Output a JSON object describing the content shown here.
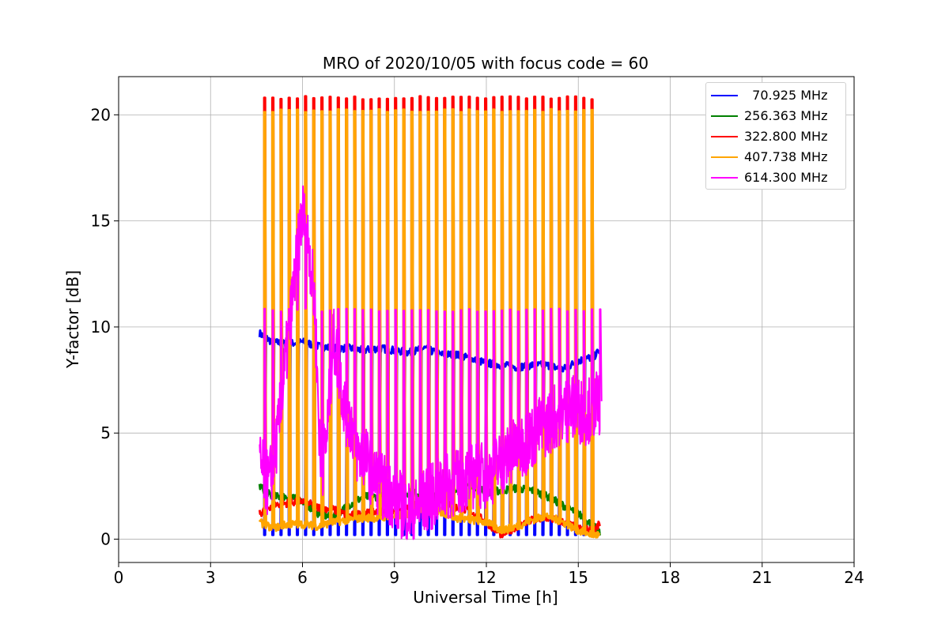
{
  "chart_data": {
    "type": "line",
    "title": "MRO of 2020/10/05 with focus code = 60",
    "xlabel": "Universal Time [h]",
    "ylabel": "Y-factor [dB]",
    "xlim": [
      0,
      24
    ],
    "ylim": [
      -1.1,
      21.8
    ],
    "xticks": [
      0,
      3,
      6,
      9,
      12,
      15,
      18,
      21,
      24
    ],
    "yticks": [
      0,
      5,
      10,
      15,
      20
    ],
    "grid": true,
    "legend_position": "top-right",
    "series": [
      {
        "name": "  70.925 MHz",
        "color": "#0000ff",
        "baseline_x": [
          4.6,
          5.0,
          5.5,
          6.0,
          6.5,
          7.0,
          7.5,
          8.0,
          8.5,
          9.0,
          9.5,
          10.0,
          10.5,
          11.0,
          11.5,
          12.0,
          12.5,
          13.0,
          13.5,
          14.0,
          14.5,
          15.0,
          15.5,
          15.7
        ],
        "baseline_y": [
          9.7,
          9.3,
          9.2,
          9.3,
          9.1,
          9.0,
          9.0,
          8.9,
          9.0,
          8.9,
          8.8,
          9.0,
          8.7,
          8.7,
          8.5,
          8.3,
          8.2,
          8.1,
          8.2,
          8.2,
          8.0,
          8.4,
          8.6,
          8.9
        ],
        "spike_low": 0.2
      },
      {
        "name": "256.363 MHz",
        "color": "#008000",
        "baseline_x": [
          4.6,
          5.0,
          5.5,
          6.0,
          6.5,
          7.0,
          7.5,
          8.0,
          8.5,
          9.0,
          9.5,
          10.0,
          10.5,
          11.0,
          11.5,
          12.0,
          12.5,
          13.0,
          13.5,
          14.0,
          14.5,
          15.0,
          15.5,
          15.7
        ],
        "baseline_y": [
          2.5,
          2.0,
          2.0,
          1.8,
          1.2,
          1.0,
          1.6,
          2.0,
          2.0,
          2.1,
          2.2,
          2.1,
          2.0,
          2.4,
          2.6,
          2.2,
          2.3,
          2.4,
          2.3,
          2.0,
          1.6,
          1.2,
          0.6,
          0.3
        ]
      },
      {
        "name": "322.800 MHz",
        "color": "#ff0000",
        "baseline_x": [
          4.6,
          5.0,
          5.5,
          6.0,
          6.5,
          7.0,
          7.5,
          8.0,
          8.5,
          9.0,
          9.5,
          10.0,
          10.5,
          11.0,
          11.5,
          12.0,
          12.5,
          13.0,
          13.5,
          14.0,
          14.5,
          15.0,
          15.5,
          15.7
        ],
        "baseline_y": [
          1.2,
          1.6,
          1.7,
          1.8,
          1.5,
          1.4,
          1.1,
          1.2,
          1.3,
          1.3,
          1.5,
          1.7,
          1.9,
          1.5,
          1.3,
          0.8,
          0.2,
          0.6,
          0.9,
          1.0,
          0.8,
          0.5,
          0.4,
          0.7
        ],
        "spike_high": 20.8
      },
      {
        "name": "407.738 MHz",
        "color": "#ffa500",
        "baseline_x": [
          4.6,
          5.0,
          5.5,
          6.0,
          6.5,
          7.0,
          7.5,
          8.0,
          8.5,
          9.0,
          9.5,
          10.0,
          10.5,
          11.0,
          11.5,
          12.0,
          12.5,
          13.0,
          13.5,
          14.0,
          14.5,
          15.0,
          15.5,
          15.7
        ],
        "baseline_y": [
          0.8,
          0.5,
          0.7,
          0.7,
          0.6,
          0.8,
          0.9,
          1.0,
          1.0,
          1.1,
          1.2,
          1.5,
          1.3,
          1.0,
          0.9,
          0.8,
          0.4,
          0.6,
          0.9,
          1.1,
          0.8,
          0.4,
          0.2,
          0.2
        ],
        "spike_high": 20.2
      },
      {
        "name": "614.300 MHz",
        "color": "#ff00ff",
        "baseline_x": [
          4.6,
          4.9,
          5.2,
          5.5,
          5.8,
          6.0,
          6.2,
          6.4,
          6.6,
          6.8,
          7.0,
          7.2,
          7.4,
          7.6,
          7.8,
          8.0,
          8.3,
          8.6,
          9.0,
          9.3,
          9.6,
          10.0,
          10.4,
          10.8,
          11.2,
          11.6,
          12.0,
          12.4,
          12.8,
          13.2,
          13.6,
          14.0,
          14.4,
          14.8,
          15.2,
          15.5,
          15.7
        ],
        "baseline_y": [
          3.5,
          2.5,
          5.0,
          9.0,
          13.0,
          15.5,
          14.0,
          11.0,
          3.0,
          5.0,
          9.5,
          8.0,
          6.0,
          5.5,
          4.0,
          4.0,
          3.0,
          2.5,
          2.0,
          1.5,
          1.2,
          1.8,
          2.2,
          2.5,
          2.8,
          3.0,
          3.0,
          3.5,
          4.0,
          4.5,
          5.0,
          5.5,
          6.0,
          6.2,
          6.0,
          6.2,
          6.5
        ],
        "spike_high": 10.8
      }
    ],
    "sweep_start": 4.75,
    "sweep_end": 15.7,
    "sweep_count": 42
  }
}
